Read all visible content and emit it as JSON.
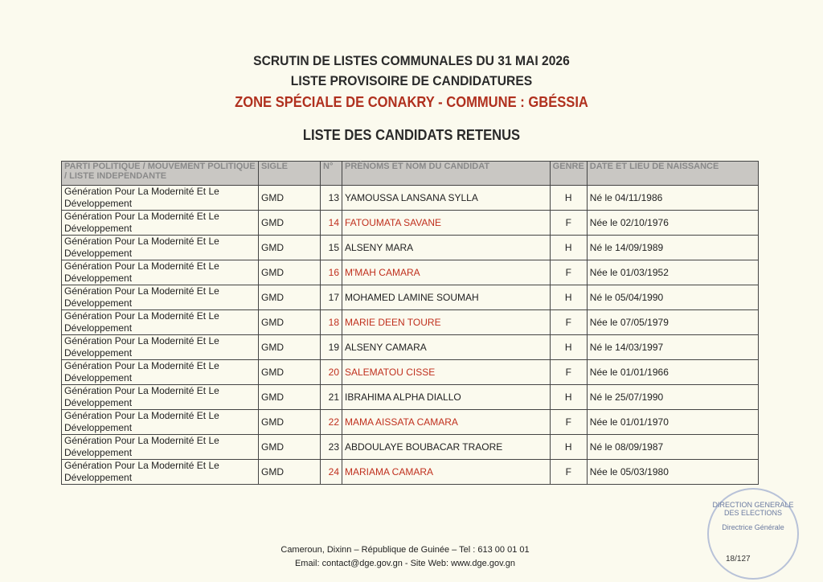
{
  "header": {
    "title1": "SCRUTIN DE LISTES COMMUNALES DU 31 MAI 2026",
    "title2": "LISTE PROVISOIRE DE CANDIDATURES",
    "title3": "ZONE SPÉCIALE DE CONAKRY - COMMUNE : GBÉSSIA",
    "title4": "LISTE DES CANDIDATS RETENUS"
  },
  "table": {
    "columns": [
      "PARTI POLITIQUE / MOUVEMENT POLITIQUE / LISTE INDEPENDANTE",
      "SIGLE",
      "N°",
      "PRÉNOMS ET NOM DU CANDIDAT",
      "GENRE",
      "DATE ET LIEU DE NAISSANCE"
    ],
    "rows": [
      {
        "party": "Génération Pour La Modernité Et Le Développement",
        "sigle": "GMD",
        "num": "13",
        "name": "YAMOUSSA LANSANA SYLLA",
        "genre": "H",
        "birth": "Né le 04/11/1986"
      },
      {
        "party": "Génération Pour La Modernité Et Le Développement",
        "sigle": "GMD",
        "num": "14",
        "name": "FATOUMATA SAVANE",
        "genre": "F",
        "birth": "Née le 02/10/1976"
      },
      {
        "party": "Génération Pour La Modernité Et Le Développement",
        "sigle": "GMD",
        "num": "15",
        "name": "ALSENY MARA",
        "genre": "H",
        "birth": "Né le 14/09/1989"
      },
      {
        "party": "Génération Pour La Modernité Et Le Développement",
        "sigle": "GMD",
        "num": "16",
        "name": "M'MAH CAMARA",
        "genre": "F",
        "birth": "Née le 01/03/1952"
      },
      {
        "party": "Génération Pour La Modernité Et Le Développement",
        "sigle": "GMD",
        "num": "17",
        "name": "MOHAMED LAMINE SOUMAH",
        "genre": "H",
        "birth": "Né le 05/04/1990"
      },
      {
        "party": "Génération Pour La Modernité Et Le Développement",
        "sigle": "GMD",
        "num": "18",
        "name": "MARIE DEEN TOURE",
        "genre": "F",
        "birth": "Née le 07/05/1979"
      },
      {
        "party": "Génération Pour La Modernité Et Le Développement",
        "sigle": "GMD",
        "num": "19",
        "name": "ALSENY CAMARA",
        "genre": "H",
        "birth": "Né le 14/03/1997"
      },
      {
        "party": "Génération Pour La Modernité Et Le Développement",
        "sigle": "GMD",
        "num": "20",
        "name": "SALEMATOU CISSE",
        "genre": "F",
        "birth": "Née le 01/01/1966"
      },
      {
        "party": "Génération Pour La Modernité Et Le Développement",
        "sigle": "GMD",
        "num": "21",
        "name": "IBRAHIMA ALPHA DIALLO",
        "genre": "H",
        "birth": "Né le 25/07/1990"
      },
      {
        "party": "Génération Pour La Modernité Et Le Développement",
        "sigle": "GMD",
        "num": "22",
        "name": "MAMA AISSATA CAMARA",
        "genre": "F",
        "birth": "Née le 01/01/1970"
      },
      {
        "party": "Génération Pour La Modernité Et Le Développement",
        "sigle": "GMD",
        "num": "23",
        "name": "ABDOULAYE BOUBACAR TRAORE",
        "genre": "H",
        "birth": "Né le 08/09/1987"
      },
      {
        "party": "Génération Pour La Modernité Et Le Développement",
        "sigle": "GMD",
        "num": "24",
        "name": "MARIAMA CAMARA",
        "genre": "F",
        "birth": "Née le  05/03/1980"
      }
    ]
  },
  "footer": {
    "line1": "Cameroun, Dixinn – République de Guinée – Tel : 613 00 01 01",
    "line2": "Email: contact@dge.gov.gn  - Site Web: www.dge.gov.gn"
  },
  "stamp": {
    "text": "DIRECTION GENERALE DES ELECTIONS",
    "sub": "Directrice Générale"
  },
  "page": "18/127",
  "colors": {
    "female_highlight": "#c0301e",
    "header_bg": "#c9c7c3"
  }
}
